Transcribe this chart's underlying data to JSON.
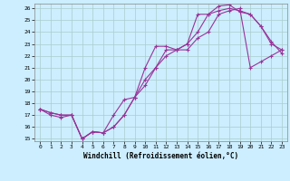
{
  "title": "",
  "xlabel": "Windchill (Refroidissement éolien,°C)",
  "ylabel": "",
  "background_color": "#cceeff",
  "grid_color": "#aacccc",
  "line_color": "#993399",
  "x": [
    0,
    1,
    2,
    3,
    4,
    5,
    6,
    7,
    8,
    9,
    10,
    11,
    12,
    13,
    14,
    15,
    16,
    17,
    18,
    19,
    20,
    21,
    22,
    23
  ],
  "line1": [
    17.5,
    17.0,
    16.8,
    17.0,
    15.0,
    15.6,
    15.5,
    17.0,
    18.3,
    18.5,
    21.0,
    22.8,
    22.8,
    22.5,
    23.0,
    25.5,
    25.5,
    26.2,
    26.3,
    25.7,
    25.5,
    24.5,
    23.0,
    22.5
  ],
  "line2": [
    17.5,
    17.2,
    17.0,
    17.0,
    15.0,
    15.6,
    15.5,
    16.0,
    17.0,
    18.5,
    20.0,
    21.0,
    22.5,
    22.5,
    23.0,
    24.0,
    25.5,
    25.8,
    26.0,
    25.8,
    25.5,
    24.5,
    23.2,
    22.2
  ],
  "line3": [
    17.5,
    17.2,
    17.0,
    17.0,
    15.0,
    15.6,
    15.5,
    16.0,
    17.0,
    18.5,
    19.5,
    21.0,
    22.0,
    22.5,
    22.5,
    23.5,
    24.0,
    25.5,
    25.8,
    26.0,
    21.0,
    21.5,
    22.0,
    22.5
  ],
  "ylim": [
    14.8,
    26.4
  ],
  "xlim": [
    -0.5,
    23.5
  ],
  "yticks": [
    15,
    16,
    17,
    18,
    19,
    20,
    21,
    22,
    23,
    24,
    25,
    26
  ],
  "xticks": [
    0,
    1,
    2,
    3,
    4,
    5,
    6,
    7,
    8,
    9,
    10,
    11,
    12,
    13,
    14,
    15,
    16,
    17,
    18,
    19,
    20,
    21,
    22,
    23
  ],
  "marker": "+",
  "markersize": 3,
  "linewidth": 0.8
}
